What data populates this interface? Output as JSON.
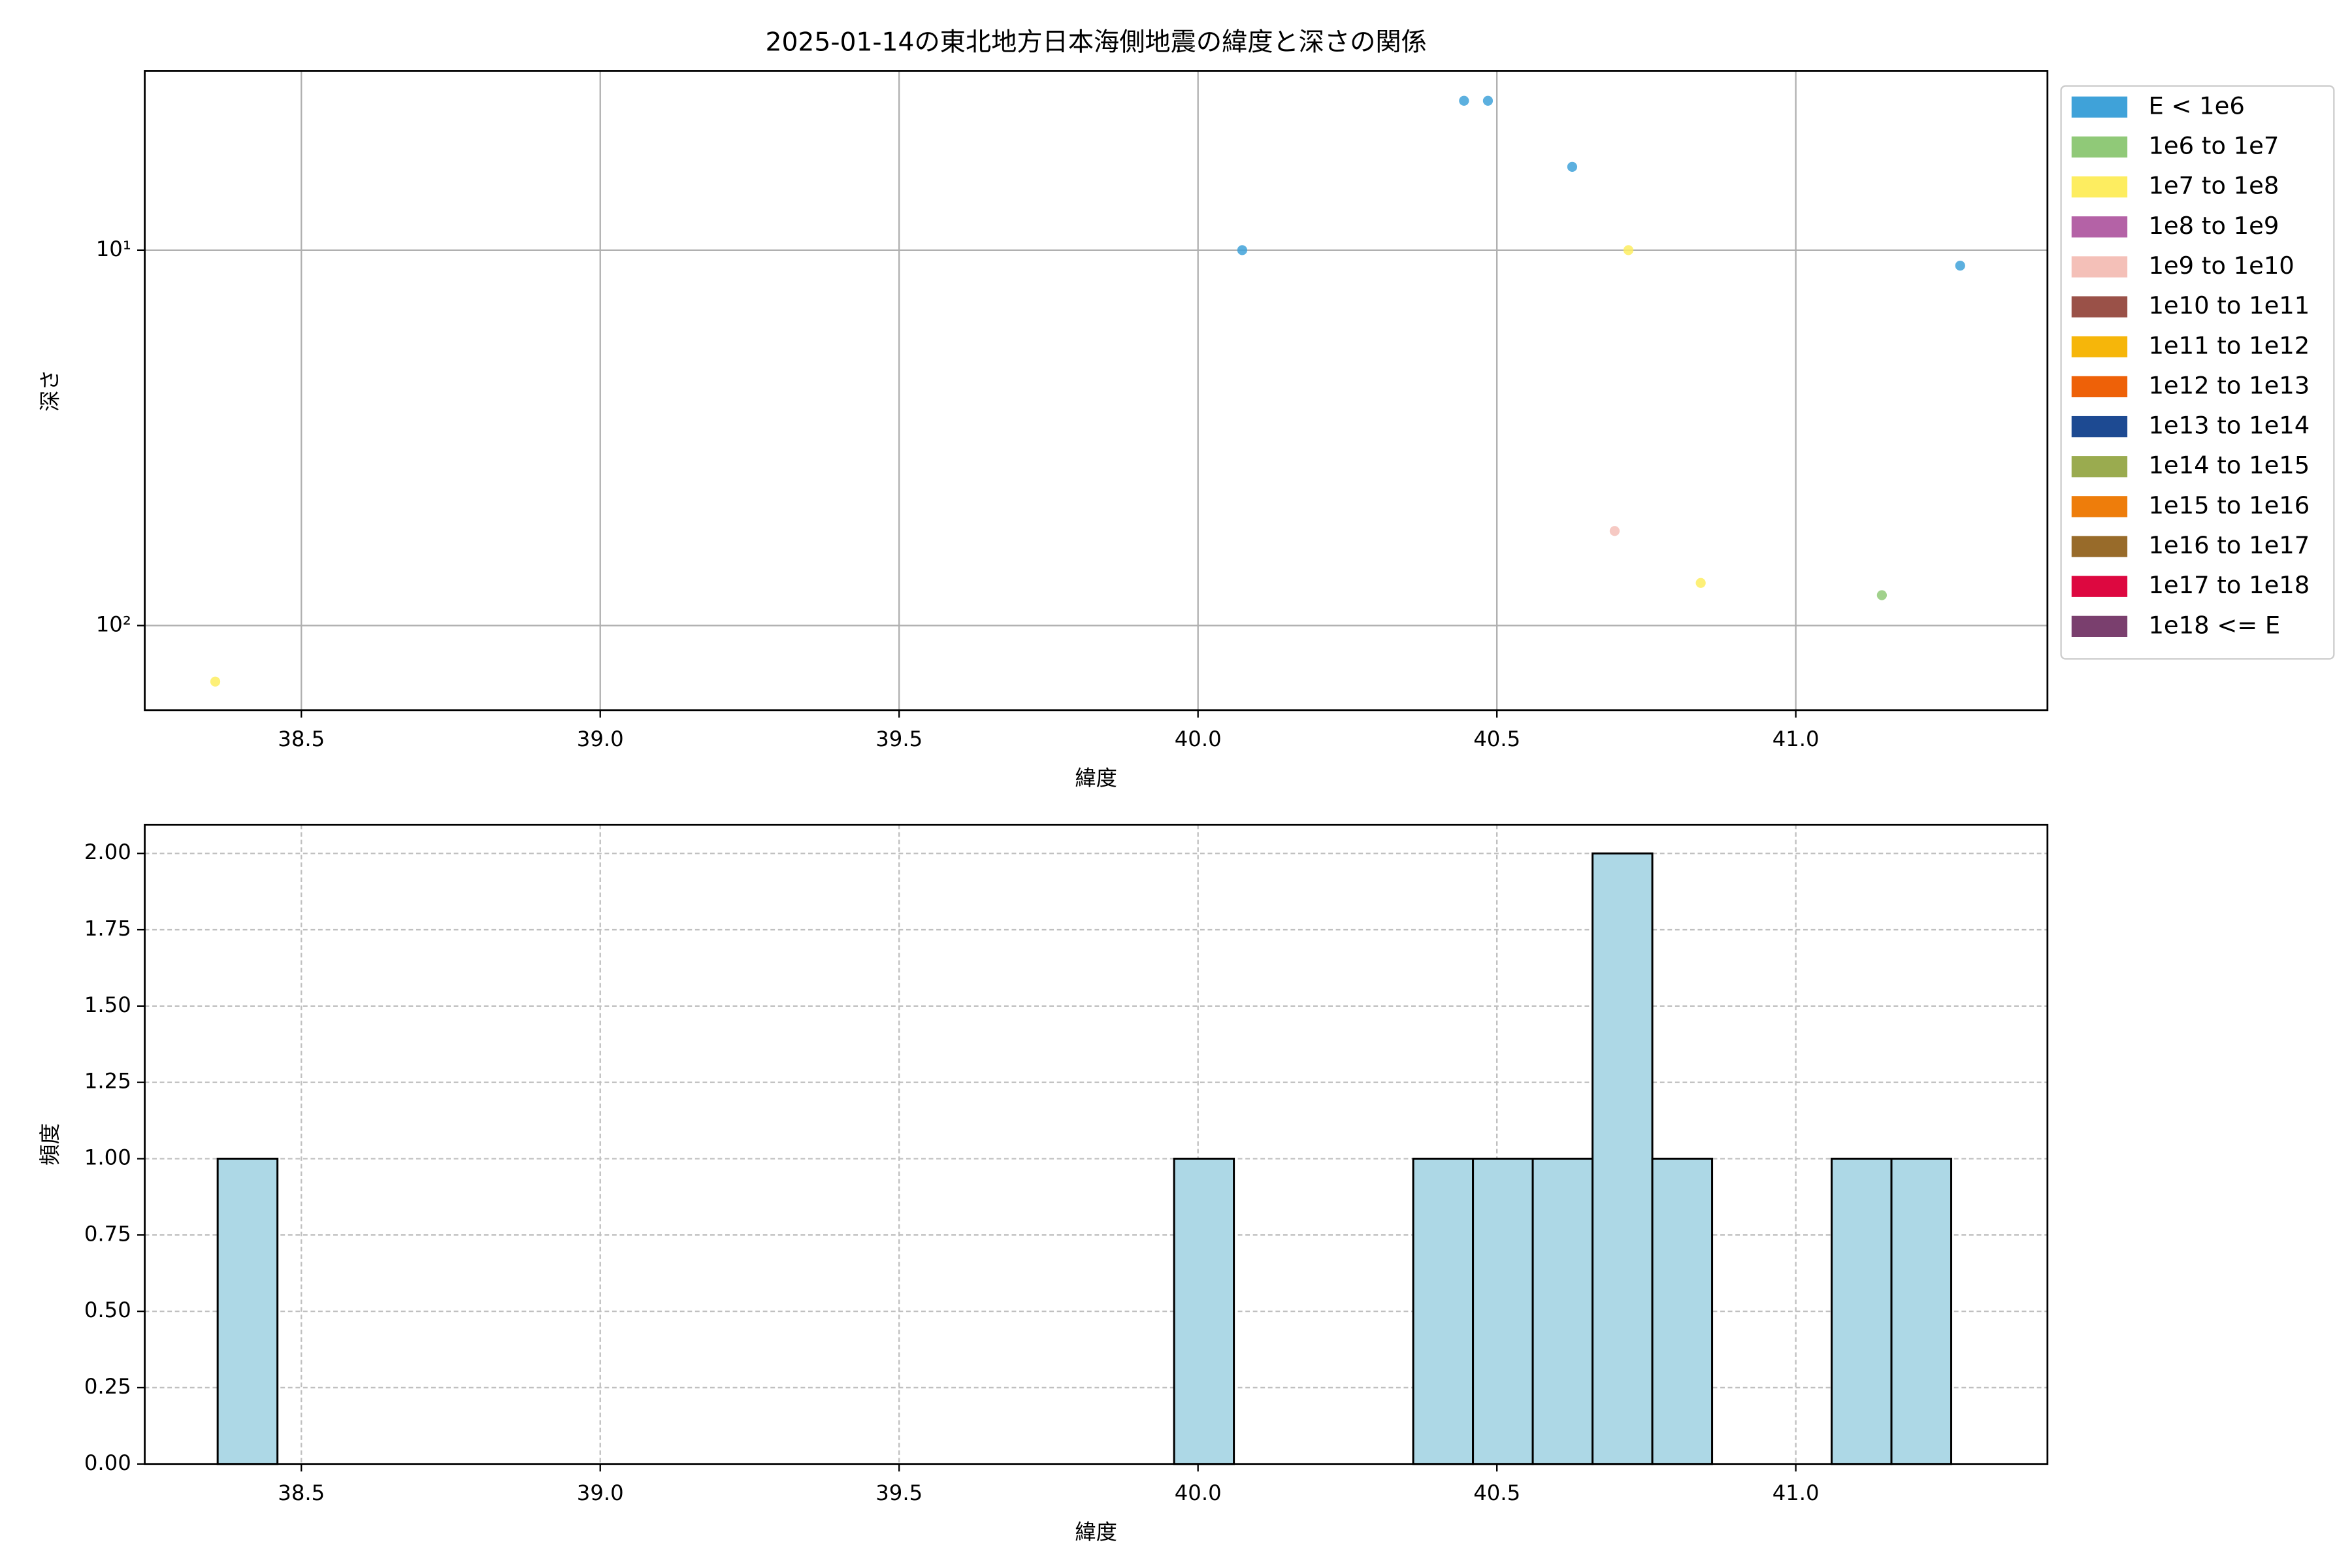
{
  "chart_data": [
    {
      "type": "scatter",
      "title": "2025-01-14の東北地方日本海側地震の緯度と深さの関係",
      "xlabel": "緯度",
      "ylabel": "深さ",
      "xlim": [
        38.238,
        41.421
      ],
      "xticks": [
        38.5,
        {
          "value": 39.0,
          "label": "39.0"
        },
        39.5,
        {
          "value": 40.0,
          "label": "40.0"
        },
        40.5,
        {
          "value": 41.0,
          "label": "41.0"
        }
      ],
      "yscale": "log",
      "ylim": [
        168,
        3.33
      ],
      "yticks": [
        {
          "value": 10,
          "label": "10¹"
        },
        {
          "value": 100,
          "label": "10²"
        }
      ],
      "grid": true,
      "legend": "outside right",
      "series": [
        {
          "name": "E < 1e6",
          "color": "#3fa2d9",
          "x": [
            40.074,
            40.445,
            40.485,
            40.626,
            41.275
          ],
          "values": [
            10,
            4,
            4,
            6,
            11
          ]
        },
        {
          "name": "1e6 to 1e7",
          "color": "#90c978",
          "x": [
            41.144
          ],
          "values": [
            83
          ]
        },
        {
          "name": "1e7 to 1e8",
          "color": "#fded60",
          "x": [
            38.356,
            40.72,
            40.841
          ],
          "values": [
            141,
            10,
            77
          ]
        },
        {
          "name": "1e8 to 1e9",
          "color": "#b462a6",
          "x": [],
          "values": []
        },
        {
          "name": "1e9 to 1e10",
          "color": "#f4c0b8",
          "x": [
            40.697
          ],
          "values": [
            56
          ]
        },
        {
          "name": "1e10 to 1e11",
          "color": "#9a5148",
          "x": [],
          "values": []
        },
        {
          "name": "1e11 to 1e12",
          "color": "#f6b60a",
          "x": [],
          "values": []
        },
        {
          "name": "1e12 to 1e13",
          "color": "#ee6108",
          "x": [],
          "values": []
        },
        {
          "name": "1e13 to 1e14",
          "color": "#1d4a92",
          "x": [],
          "values": []
        },
        {
          "name": "1e14 to 1e15",
          "color": "#9aab4f",
          "x": [],
          "values": []
        },
        {
          "name": "1e15 to 1e16",
          "color": "#ee7d0b",
          "x": [],
          "values": []
        },
        {
          "name": "1e16 to 1e17",
          "color": "#986b2a",
          "x": [],
          "values": []
        },
        {
          "name": "1e17 to 1e18",
          "color": "#dd0840",
          "x": [],
          "values": []
        },
        {
          "name": "1e18 <= E",
          "color": "#7a3f6e",
          "x": [],
          "values": []
        }
      ]
    },
    {
      "type": "histogram",
      "xlabel": "緯度",
      "ylabel": "頻度",
      "color": "#add8e6",
      "xlim": [
        38.238,
        41.421
      ],
      "xticks": [
        38.5,
        {
          "value": 39.0,
          "label": "39.0"
        },
        39.5,
        {
          "value": 40.0,
          "label": "40.0"
        },
        40.5,
        {
          "value": 41.0,
          "label": "41.0"
        }
      ],
      "ylim": [
        0,
        2.094
      ],
      "yticks": [
        {
          "value": 0,
          "label": "0.00"
        },
        {
          "value": 0.25,
          "label": "0.25"
        },
        {
          "value": 0.5,
          "label": "0.50"
        },
        {
          "value": 0.75,
          "label": "0.75"
        },
        {
          "value": 1,
          "label": "1.00"
        },
        {
          "value": 1.25,
          "label": "1.25"
        },
        {
          "value": 1.5,
          "label": "1.50"
        },
        {
          "value": 1.75,
          "label": "1.75"
        },
        {
          "value": 2,
          "label": "2.00"
        }
      ],
      "grid": true,
      "bins": [
        38.36,
        38.46,
        38.56,
        38.66,
        38.76,
        38.86,
        38.96,
        39.06,
        39.16,
        39.26,
        39.36,
        39.46,
        39.56,
        39.66,
        39.76,
        39.86,
        39.96,
        40.06,
        40.16,
        40.26,
        40.36,
        40.46,
        40.56,
        40.66,
        40.76,
        40.86,
        40.96,
        41.06,
        41.16,
        41.26
      ],
      "counts": [
        1,
        0,
        0,
        0,
        0,
        0,
        0,
        0,
        0,
        0,
        0,
        0,
        0,
        0,
        0,
        0,
        1,
        0,
        0,
        0,
        1,
        1,
        1,
        2,
        1,
        0,
        0,
        1,
        1
      ]
    }
  ]
}
